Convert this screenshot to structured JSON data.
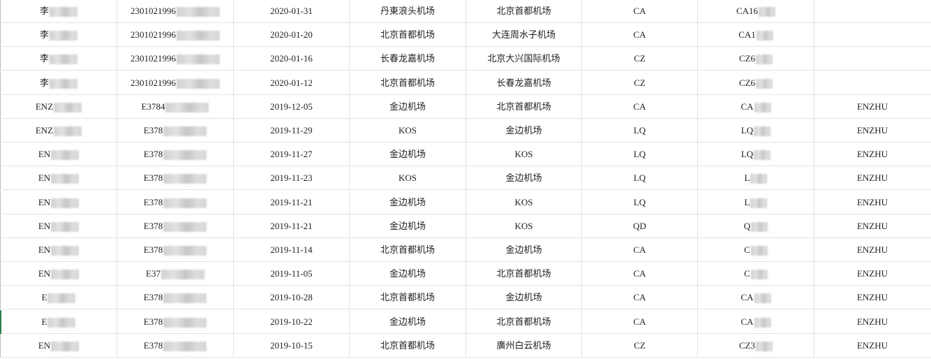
{
  "sheet": {
    "rows": [
      {
        "name": "李",
        "id": "2301021996",
        "date": "2020-01-31",
        "from": "丹東浪头机场",
        "to": "北京首都机场",
        "airline": "CA",
        "flight": "CA16",
        "pax": ""
      },
      {
        "name": "李",
        "id": "2301021996",
        "date": "2020-01-20",
        "from": "北京首都机场",
        "to": "大连周水子机场",
        "airline": "CA",
        "flight": "CA1",
        "pax": ""
      },
      {
        "name": "李",
        "id": "2301021996",
        "date": "2020-01-16",
        "from": "长春龙嘉机场",
        "to": "北京大兴国际机场",
        "airline": "CZ",
        "flight": "CZ6",
        "pax": ""
      },
      {
        "name": "李",
        "id": "2301021996",
        "date": "2020-01-12",
        "from": "北京首都机场",
        "to": "长春龙嘉机场",
        "airline": "CZ",
        "flight": "CZ6",
        "pax": ""
      },
      {
        "name": "ENZ",
        "id": "E3784",
        "date": "2019-12-05",
        "from": "金边机场",
        "to": "北京首都机场",
        "airline": "CA",
        "flight": "CA",
        "pax": "ENZHU"
      },
      {
        "name": "ENZ",
        "id": "E378",
        "date": "2019-11-29",
        "from": "KOS",
        "to": "金边机场",
        "airline": "LQ",
        "flight": "LQ",
        "pax": "ENZHU"
      },
      {
        "name": "EN",
        "id": "E378",
        "date": "2019-11-27",
        "from": "金边机场",
        "to": "KOS",
        "airline": "LQ",
        "flight": "LQ",
        "pax": "ENZHU"
      },
      {
        "name": "EN",
        "id": "E378",
        "date": "2019-11-23",
        "from": "KOS",
        "to": "金边机场",
        "airline": "LQ",
        "flight": "L",
        "pax": "ENZHU"
      },
      {
        "name": "EN",
        "id": "E378",
        "date": "2019-11-21",
        "from": "金边机场",
        "to": "KOS",
        "airline": "LQ",
        "flight": "L",
        "pax": "ENZHU"
      },
      {
        "name": "EN",
        "id": "E378",
        "date": "2019-11-21",
        "from": "金边机场",
        "to": "KOS",
        "airline": "QD",
        "flight": "Q",
        "pax": "ENZHU"
      },
      {
        "name": "EN",
        "id": "E378",
        "date": "2019-11-14",
        "from": "北京首都机场",
        "to": "金边机场",
        "airline": "CA",
        "flight": "C",
        "pax": "ENZHU"
      },
      {
        "name": "EN",
        "id": "E37",
        "date": "2019-11-05",
        "from": "金边机场",
        "to": "北京首都机场",
        "airline": "CA",
        "flight": "C",
        "pax": "ENZHU"
      },
      {
        "name": "E",
        "id": "E378",
        "date": "2019-10-28",
        "from": "北京首都机场",
        "to": "金边机场",
        "airline": "CA",
        "flight": "CA",
        "pax": "ENZHU"
      },
      {
        "name": "E",
        "id": "E378",
        "date": "2019-10-22",
        "from": "金边机场",
        "to": "北京首都机场",
        "airline": "CA",
        "flight": "CA",
        "pax": "ENZHU"
      },
      {
        "name": "EN",
        "id": "E378",
        "date": "2019-10-15",
        "from": "北京首都机场",
        "to": "廣州白云机场",
        "airline": "CZ",
        "flight": "CZ3",
        "pax": "ENZHU"
      }
    ]
  }
}
